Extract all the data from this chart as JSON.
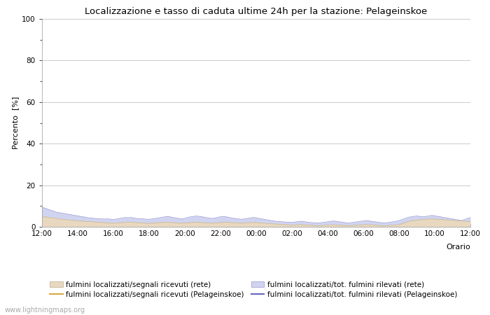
{
  "title": "Localizzazione e tasso di caduta ultime 24h per la stazione: Pelageinskoe",
  "ylabel": "Percento  [%]",
  "xlabel": "Orario",
  "ylim": [
    0,
    100
  ],
  "yticks": [
    0,
    20,
    40,
    60,
    80,
    100
  ],
  "yticks_minor": [
    10,
    30,
    50,
    70,
    90
  ],
  "x_labels": [
    "12:00",
    "14:00",
    "16:00",
    "18:00",
    "20:00",
    "22:00",
    "00:00",
    "02:00",
    "04:00",
    "06:00",
    "08:00",
    "10:00",
    "12:00"
  ],
  "bg_color": "#ffffff",
  "plot_bg_color": "#ffffff",
  "grid_color": "#cccccc",
  "fill_rete_color": "#e8d8c0",
  "fill_pelag_color": "#d0d4f0",
  "line_rete_solo_color": "#d4aa44",
  "line_pelag_solo_color": "#6666bb",
  "watermark": "www.lightningmaps.org",
  "legend": [
    {
      "label": "fulmini localizzati/segnali ricevuti (rete)",
      "type": "fill",
      "color": "#e8d8c0"
    },
    {
      "label": "fulmini localizzati/segnali ricevuti (Pelageinskoe)",
      "type": "line",
      "color": "#d4aa44"
    },
    {
      "label": "fulmini localizzati/tot. fulmini rilevati (rete)",
      "type": "fill",
      "color": "#d0d4f0"
    },
    {
      "label": "fulmini localizzati/tot. fulmini rilevati (Pelageinskoe)",
      "type": "line",
      "color": "#6666bb"
    }
  ],
  "n_points": 145,
  "rete_fill": [
    4.5,
    4.8,
    4.6,
    4.4,
    4.2,
    4.0,
    3.8,
    3.6,
    3.5,
    3.3,
    3.2,
    3.0,
    2.9,
    2.8,
    2.7,
    2.6,
    2.5,
    2.4,
    2.3,
    2.2,
    2.1,
    2.0,
    1.9,
    1.8,
    1.7,
    1.8,
    1.9,
    2.0,
    2.1,
    2.2,
    2.3,
    2.1,
    2.0,
    1.9,
    1.8,
    1.7,
    1.6,
    1.7,
    1.8,
    1.9,
    2.0,
    2.1,
    2.2,
    2.1,
    2.0,
    1.9,
    1.8,
    1.7,
    1.8,
    1.9,
    2.0,
    2.1,
    2.2,
    2.1,
    2.0,
    1.9,
    1.8,
    1.7,
    1.8,
    1.9,
    2.0,
    2.1,
    2.2,
    2.1,
    2.0,
    1.9,
    1.8,
    1.7,
    1.8,
    1.9,
    2.0,
    2.1,
    2.0,
    1.9,
    1.8,
    1.7,
    1.6,
    1.5,
    1.4,
    1.3,
    1.2,
    1.1,
    1.0,
    0.9,
    0.8,
    0.9,
    1.0,
    1.1,
    1.0,
    0.9,
    0.8,
    0.7,
    0.6,
    0.5,
    0.6,
    0.7,
    0.8,
    0.9,
    1.0,
    0.9,
    0.8,
    0.7,
    0.6,
    0.5,
    0.6,
    0.7,
    0.8,
    0.9,
    1.0,
    1.1,
    1.0,
    0.9,
    0.8,
    0.7,
    0.6,
    0.5,
    0.6,
    0.7,
    0.8,
    0.9,
    1.0,
    1.5,
    2.0,
    2.5,
    2.8,
    3.0,
    3.2,
    3.4,
    3.5,
    3.6,
    3.7,
    3.8,
    3.7,
    3.6,
    3.5,
    3.4,
    3.3,
    3.2,
    3.1,
    3.0,
    2.9,
    2.8,
    2.7,
    2.6,
    2.5
  ],
  "pelag_fill": [
    9.5,
    9.0,
    8.5,
    8.0,
    7.5,
    7.0,
    6.8,
    6.5,
    6.3,
    6.0,
    5.8,
    5.5,
    5.3,
    5.0,
    4.8,
    4.5,
    4.3,
    4.2,
    4.0,
    3.9,
    3.8,
    3.7,
    3.8,
    3.7,
    3.5,
    3.7,
    4.0,
    4.2,
    4.5,
    4.3,
    4.5,
    4.2,
    4.0,
    3.9,
    3.8,
    3.7,
    3.6,
    3.8,
    4.0,
    4.2,
    4.5,
    4.7,
    5.0,
    4.8,
    4.5,
    4.3,
    4.0,
    3.8,
    4.0,
    4.5,
    4.8,
    5.0,
    5.2,
    5.0,
    4.8,
    4.5,
    4.3,
    4.0,
    4.2,
    4.5,
    4.8,
    5.0,
    4.8,
    4.5,
    4.2,
    4.0,
    3.8,
    3.6,
    3.8,
    4.0,
    4.2,
    4.5,
    4.3,
    4.0,
    3.8,
    3.5,
    3.3,
    3.0,
    2.8,
    2.6,
    2.5,
    2.4,
    2.3,
    2.2,
    2.1,
    2.3,
    2.5,
    2.7,
    2.5,
    2.3,
    2.1,
    2.0,
    1.9,
    1.8,
    2.0,
    2.2,
    2.4,
    2.6,
    2.8,
    2.6,
    2.4,
    2.2,
    2.0,
    1.8,
    2.0,
    2.2,
    2.4,
    2.6,
    2.8,
    3.0,
    2.8,
    2.6,
    2.4,
    2.2,
    2.0,
    1.8,
    2.0,
    2.2,
    2.4,
    2.6,
    3.0,
    3.5,
    4.0,
    4.5,
    4.8,
    5.0,
    5.2,
    5.0,
    4.8,
    5.0,
    5.2,
    5.5,
    5.3,
    5.0,
    4.8,
    4.5,
    4.3,
    4.0,
    3.8,
    3.5,
    3.3,
    3.0,
    3.5,
    4.0,
    4.5
  ]
}
